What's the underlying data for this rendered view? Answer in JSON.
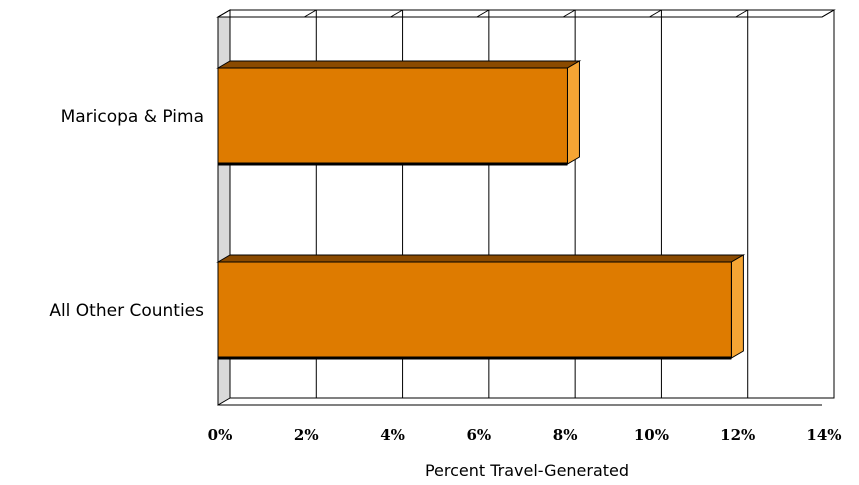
{
  "chart_data": {
    "type": "bar",
    "orientation": "horizontal",
    "three_d": true,
    "categories": [
      "Maricopa & Pima",
      "All Other Counties"
    ],
    "values": [
      8.1,
      11.9
    ],
    "xlabel": "Percent Travel-Generated",
    "xlim": [
      0,
      14
    ],
    "xticks": [
      0,
      2,
      4,
      6,
      8,
      10,
      12,
      14
    ],
    "tick_labels": [
      "0%",
      "2%",
      "4%",
      "6%",
      "8%",
      "10%",
      "12%",
      "14%"
    ],
    "grid": true,
    "legend": "none",
    "colors": {
      "bar_face": "#de7b00",
      "bar_side": "#f5a534",
      "bar_top": "#8a4a00",
      "wall": "#d9d9d9",
      "grid": "#000000"
    }
  }
}
